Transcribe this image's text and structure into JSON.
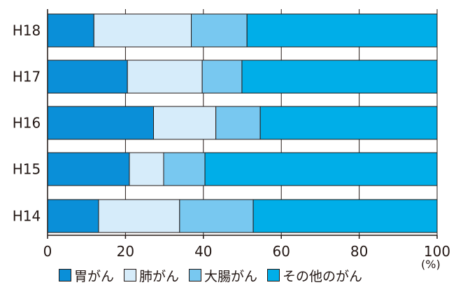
{
  "chart_data": {
    "type": "bar",
    "orientation": "horizontal",
    "stacked": true,
    "categories": [
      "H18",
      "H17",
      "H16",
      "H15",
      "H14"
    ],
    "series": [
      {
        "name": "胃がん",
        "color": "#0a8fd8",
        "values": [
          11.9,
          20.5,
          27.2,
          21.0,
          13.1
        ]
      },
      {
        "name": "肺がん",
        "color": "#d6ecfa",
        "values": [
          25.0,
          19.2,
          16.0,
          8.8,
          20.8
        ]
      },
      {
        "name": "大腸がん",
        "color": "#78c8f0",
        "values": [
          14.3,
          10.2,
          11.4,
          10.6,
          18.9
        ]
      },
      {
        "name": "その他のがん",
        "color": "#00aee8",
        "values": [
          48.8,
          50.1,
          45.4,
          59.6,
          47.2
        ]
      }
    ],
    "xlim": [
      0,
      100
    ],
    "xticks": [
      0,
      20,
      40,
      60,
      80,
      100
    ],
    "x_unit": "(%)",
    "grid": true,
    "legend": "bottom"
  }
}
